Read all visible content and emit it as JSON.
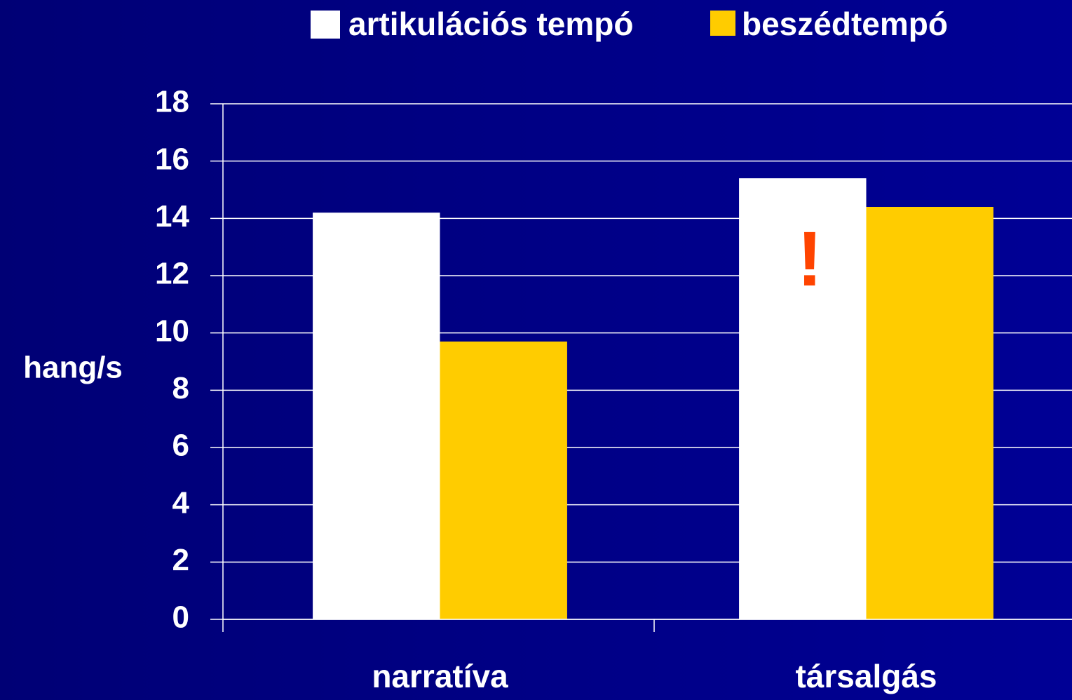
{
  "chart_data": {
    "type": "bar",
    "categories": [
      "narratíva",
      "társalgás"
    ],
    "series": [
      {
        "name": "artikulációs tempó",
        "color": "#ffffff",
        "values": [
          14.2,
          15.4
        ]
      },
      {
        "name": "beszédtempó",
        "color": "#ffcc00",
        "values": [
          9.7,
          14.4
        ]
      }
    ],
    "y_label": "hang/s",
    "annotation": "!",
    "ylim": [
      0,
      18
    ],
    "yticks": [
      0,
      2,
      4,
      6,
      8,
      10,
      12,
      14,
      16,
      18
    ],
    "grid": true,
    "legend": "top"
  }
}
